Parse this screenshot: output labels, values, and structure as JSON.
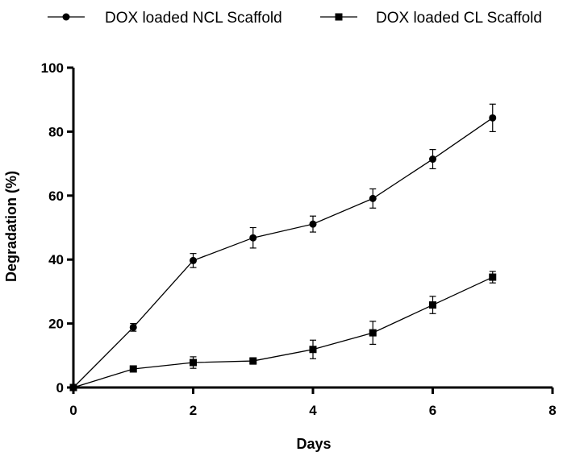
{
  "chart_data": {
    "type": "line",
    "title": "",
    "xlabel": "Days",
    "ylabel": "Degradation (%)",
    "xlim": [
      0,
      8
    ],
    "ylim": [
      0,
      100
    ],
    "xticks": [
      0,
      2,
      4,
      6,
      8
    ],
    "yticks": [
      0,
      20,
      40,
      60,
      80,
      100
    ],
    "grid": false,
    "legend_position": "top",
    "series": [
      {
        "name": "DOX loaded NCL Scaffold",
        "marker": "circle",
        "color": "#000000",
        "x": [
          0,
          1,
          2,
          3,
          4,
          5,
          6,
          7
        ],
        "y": [
          0,
          18.8,
          39.7,
          46.8,
          51.1,
          59.1,
          71.4,
          84.3
        ],
        "err": [
          0,
          1.2,
          2.2,
          3.2,
          2.5,
          3.0,
          3.0,
          4.3
        ]
      },
      {
        "name": "DOX loaded CL Scaffold",
        "marker": "square",
        "color": "#000000",
        "x": [
          0,
          1,
          2,
          3,
          4,
          5,
          6,
          7
        ],
        "y": [
          0,
          5.8,
          7.8,
          8.3,
          11.9,
          17.1,
          25.8,
          34.5
        ],
        "err": [
          0,
          0.8,
          1.8,
          1.0,
          2.9,
          3.6,
          2.7,
          1.8
        ]
      }
    ]
  }
}
